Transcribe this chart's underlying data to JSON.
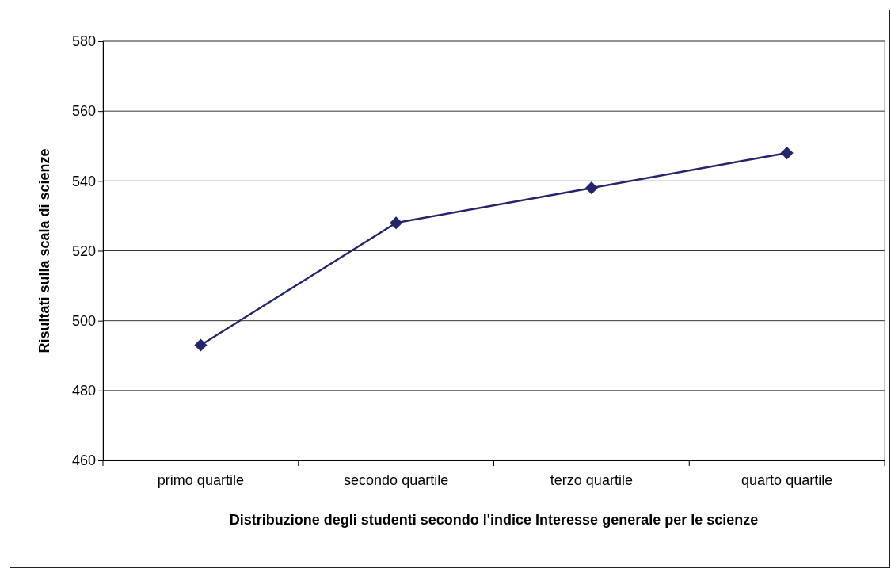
{
  "chart_data": {
    "type": "line",
    "xlabel": "Distribuzione degli studenti secondo l'indice Interesse generale per le scienze",
    "ylabel": "Risultati sulla scala di scienze",
    "categories": [
      "primo quartile",
      "secondo quartile",
      "terzo quartile",
      "quarto quartile"
    ],
    "series": [
      {
        "color": "#25256e",
        "values": [
          493,
          528,
          538,
          548
        ]
      }
    ],
    "ylim": [
      460,
      580
    ],
    "yticks": [
      460,
      480,
      500,
      520,
      540,
      560,
      580
    ],
    "grid": "y",
    "marker": "diamond",
    "line_style": "solid"
  }
}
